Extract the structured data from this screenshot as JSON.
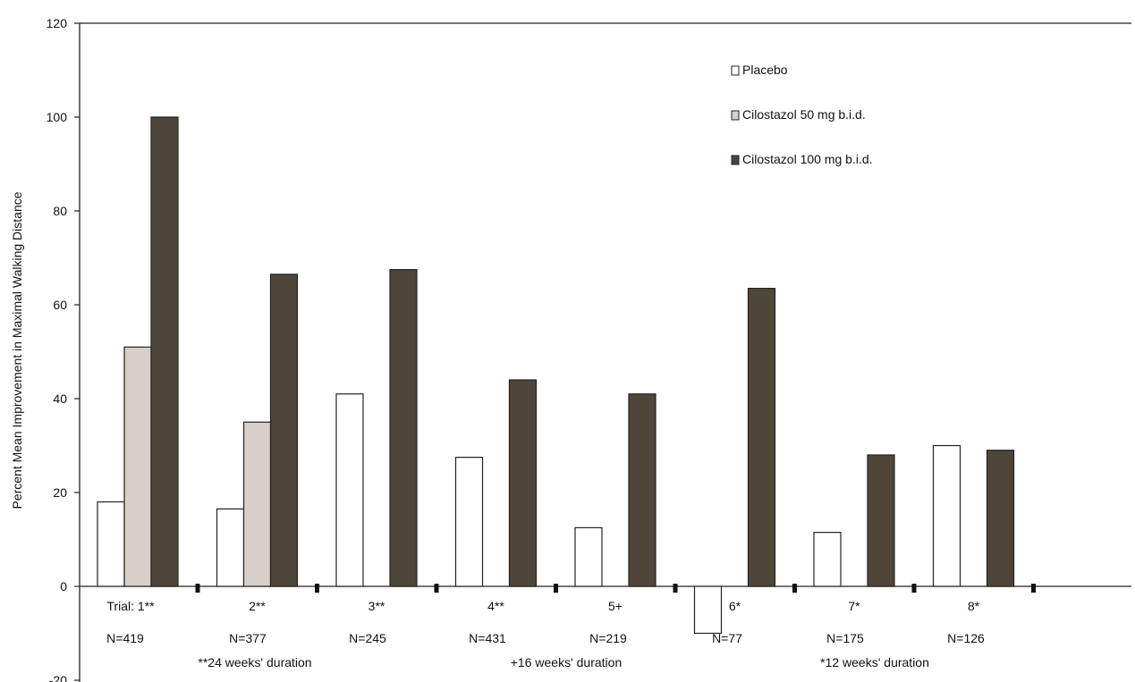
{
  "chart_data": {
    "type": "bar",
    "ylabel": "Percent Mean Improvement in Maximal Walking Distance",
    "ylim": [
      -20,
      120
    ],
    "yticks": [
      -20,
      0,
      20,
      40,
      60,
      80,
      100,
      120
    ],
    "grid": false,
    "legend_position": "top-right",
    "categories": [
      "Trial: 1**",
      "2**",
      "3**",
      "4**",
      "5+",
      "6*",
      "7*",
      "8*"
    ],
    "n_labels": [
      "N=419",
      "N=377",
      "N=245",
      "N=431",
      "N=219",
      "N=77",
      "N=175",
      "N=126"
    ],
    "duration_notes": [
      "**24 weeks' duration",
      "+16 weeks' duration",
      "*12 weeks' duration"
    ],
    "series": [
      {
        "name": "Placebo",
        "color": "#ffffff",
        "values": [
          18,
          16.5,
          41,
          27.5,
          12.5,
          -10,
          11.5,
          30
        ]
      },
      {
        "name": "Cilostazol 50 mg b.i.d.",
        "color": "#d6d0c8",
        "values": [
          51,
          35,
          null,
          null,
          null,
          null,
          null,
          null
        ]
      },
      {
        "name": "Cilostazol 100 mg b.i.d.",
        "color": "#4e4639",
        "values": [
          100,
          66.5,
          67.5,
          44,
          41,
          63.5,
          28,
          29
        ]
      }
    ]
  }
}
